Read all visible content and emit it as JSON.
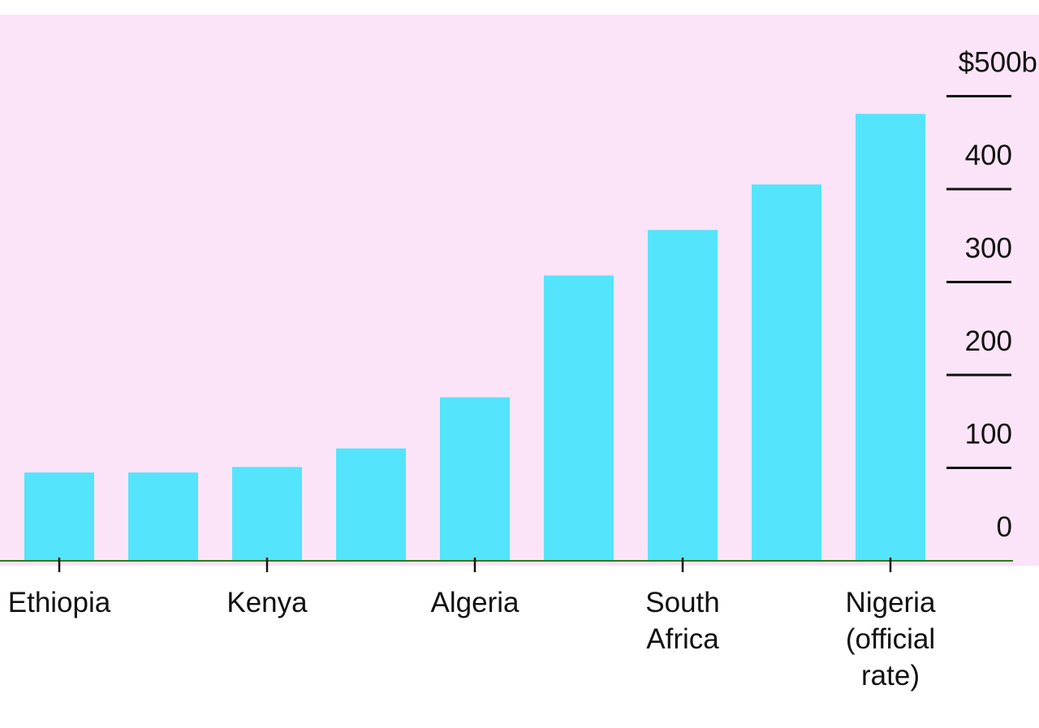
{
  "chart_data": {
    "type": "bar",
    "categories": [
      "Ethiopia",
      "",
      "Kenya",
      "",
      "Algeria",
      "",
      "South Africa",
      "",
      "Nigeria (official rate)"
    ],
    "category_label_lines": [
      [
        "Ethiopia"
      ],
      [],
      [
        "Kenya"
      ],
      [],
      [
        "Algeria"
      ],
      [],
      [
        "South",
        "Africa"
      ],
      [],
      [
        "Nigeria",
        "(official",
        "rate)"
      ]
    ],
    "values": [
      95,
      95,
      101,
      121,
      176,
      307,
      356,
      405,
      481
    ],
    "ylim": [
      0,
      500
    ],
    "yticks": [
      0,
      100,
      200,
      300,
      400,
      500
    ],
    "ytick_labels": [
      "0",
      "100",
      "200",
      "300",
      "400",
      "$500b"
    ],
    "title": "",
    "xlabel": "",
    "ylabel": "",
    "grid": false,
    "legend": "none"
  },
  "colors": {
    "plot_background": "#fce4f8",
    "bar": "#54e4fb",
    "baseline": "#2e7d1e",
    "tick": "#111111",
    "text": "#111111"
  }
}
